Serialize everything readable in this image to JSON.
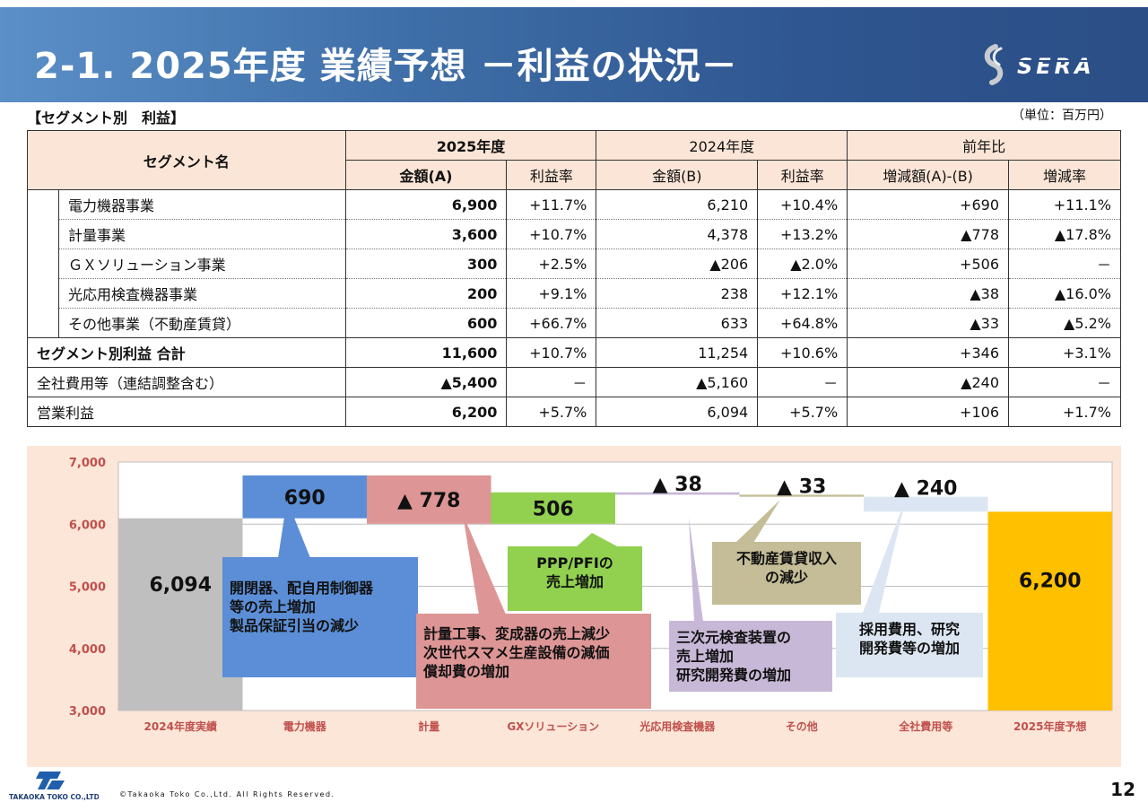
{
  "header": {
    "title": "2-1. 2025年度 業績予想 －利益の状況－",
    "brand": "SERA"
  },
  "segment_label": "【セグメント別　利益】",
  "unit_label": "（単位：百万円）",
  "table": {
    "h_segment": "セグメント名",
    "h_2025": "2025年度",
    "h_2024": "2024年度",
    "h_yoy": "前年比",
    "h_amount_a": "金額(A)",
    "h_margin": "利益率",
    "h_amount_b": "金額(B)",
    "h_diff": "増減額(A)-(B)",
    "h_rate": "増減率",
    "rows": [
      {
        "name": "電力機器事業",
        "a": "6,900",
        "ma": "+11.7%",
        "b": "6,210",
        "mb": "+10.4%",
        "diff": "+690",
        "rate": "+11.1%"
      },
      {
        "name": "計量事業",
        "a": "3,600",
        "ma": "+10.7%",
        "b": "4,378",
        "mb": "+13.2%",
        "diff": "▲778",
        "rate": "▲17.8%"
      },
      {
        "name": "ＧＸソリューション事業",
        "a": "300",
        "ma": "+2.5%",
        "b": "▲206",
        "mb": "▲2.0%",
        "diff": "+506",
        "rate": "－"
      },
      {
        "name": "光応用検査機器事業",
        "a": "200",
        "ma": "+9.1%",
        "b": "238",
        "mb": "+12.1%",
        "diff": "▲38",
        "rate": "▲16.0%"
      },
      {
        "name": "その他事業（不動産賃貸）",
        "a": "600",
        "ma": "+66.7%",
        "b": "633",
        "mb": "+64.8%",
        "diff": "▲33",
        "rate": "▲5.2%"
      }
    ],
    "total": {
      "name": "セグメント別利益 合計",
      "a": "11,600",
      "ma": "+10.7%",
      "b": "11,254",
      "mb": "+10.6%",
      "diff": "+346",
      "rate": "+3.1%"
    },
    "corp": {
      "name": "全社費用等（連結調整含む）",
      "a": "▲5,400",
      "ma": "－",
      "b": "▲5,160",
      "mb": "－",
      "diff": "▲240",
      "rate": "－"
    },
    "op": {
      "name": "営業利益",
      "a": "6,200",
      "ma": "+5.7%",
      "b": "6,094",
      "mb": "+5.7%",
      "diff": "+106",
      "rate": "+1.7%"
    }
  },
  "chart_data": {
    "type": "bar",
    "subtype": "waterfall",
    "categories": [
      "2024年度実績",
      "電力機器",
      "計量",
      "GXソリューション",
      "光応用検査機器",
      "その他",
      "全社費用等",
      "2025年度予想"
    ],
    "bars": [
      {
        "start": 3000,
        "end": 6094,
        "label": "6,094",
        "color": "#bfbfbf"
      },
      {
        "start": 6094,
        "end": 6784,
        "label": "690",
        "color": "#5b8ed6"
      },
      {
        "start": 6784,
        "end": 6006,
        "label": "▲ 778",
        "color": "#dd9595"
      },
      {
        "start": 6006,
        "end": 6512,
        "label": "506",
        "color": "#92d050"
      },
      {
        "start": 6512,
        "end": 6474,
        "label": "▲ 38",
        "color": "#c8b8d8"
      },
      {
        "start": 6474,
        "end": 6441,
        "label": "▲ 33",
        "color": "#c4bd97"
      },
      {
        "start": 6441,
        "end": 6201,
        "label": "▲ 240",
        "color": "#dce6f2"
      },
      {
        "start": 3000,
        "end": 6200,
        "label": "6,200",
        "color": "#ffc000"
      }
    ],
    "ylim": [
      3000,
      7000
    ],
    "yticks": [
      3000,
      4000,
      5000,
      6000,
      7000
    ],
    "ytick_labels": [
      "3,000",
      "4,000",
      "5,000",
      "6,000",
      "7,000"
    ],
    "grid": true,
    "annotations": [
      {
        "text1": "開閉器、配自用制御器",
        "text2": "等の売上増加",
        "text3": "製品保証引当の減少",
        "color": "#5b8ed6"
      },
      {
        "text1": "計量工事、変成器の売上減少",
        "text2": "次世代スマメ生産設備の減価",
        "text3": "償却費の増加",
        "color": "#dd9595"
      },
      {
        "text1": "PPP/PFIの",
        "text2": "売上増加",
        "color": "#92d050"
      },
      {
        "text1": "三次元検査装置の",
        "text2": "売上増加",
        "text3": "研究開発費の増加",
        "color": "#c8b8d8"
      },
      {
        "text1": "不動産賃貸収入",
        "text2": "の減少",
        "color": "#c4bd97"
      },
      {
        "text1": "採用費用、研究",
        "text2": "開発費等の増加",
        "color": "#dce6f2"
      }
    ]
  },
  "footer": {
    "company": "TAKAOKA TOKO CO.,LTD.",
    "copyright": "©Takaoka Toko Co.,Ltd. All Rights Reserved.",
    "page": "12"
  }
}
